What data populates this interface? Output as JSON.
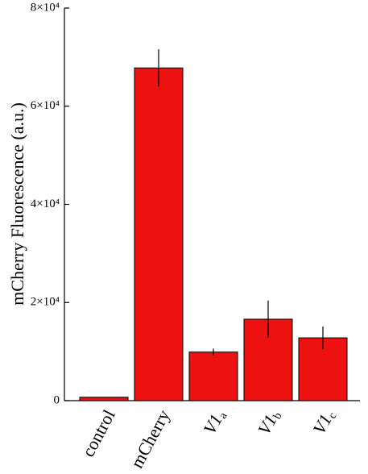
{
  "chart_data": {
    "type": "bar",
    "y_label": "mCherry Fluorescence (a.u.)",
    "categories": [
      "control",
      "mCherry",
      "V1a",
      "V1b",
      "V1c"
    ],
    "values": [
      700,
      67800,
      9900,
      16600,
      12800
    ],
    "errors": [
      null,
      3800,
      700,
      3800,
      2300
    ],
    "color": "#ee1111",
    "ylim": [
      0,
      80000
    ],
    "yticks": [
      0,
      {
        "value": 20000,
        "label": "2×10⁴"
      },
      {
        "value": 40000,
        "label": "4×10⁴"
      },
      {
        "value": 60000,
        "label": "6×10⁴"
      },
      {
        "value": 80000,
        "label": "8×10⁴"
      }
    ]
  }
}
